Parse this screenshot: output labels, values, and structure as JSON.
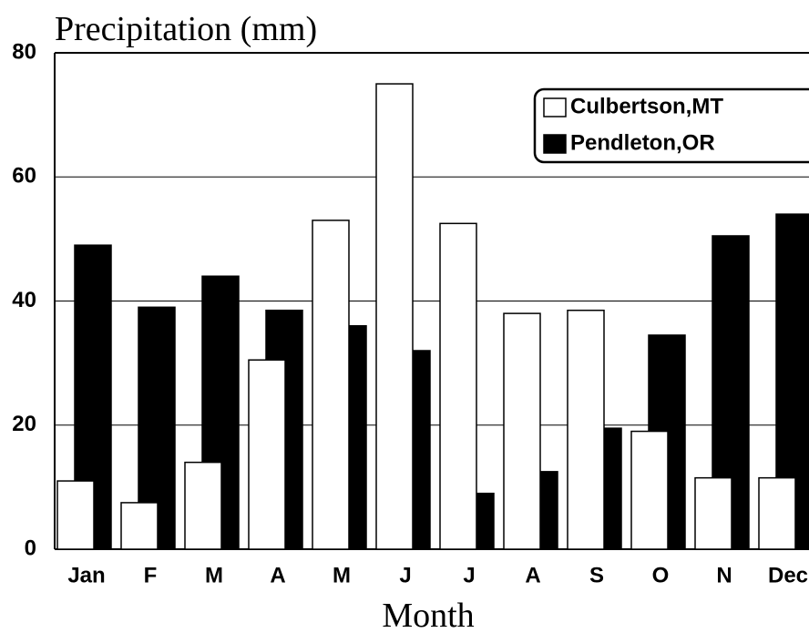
{
  "chart_data": {
    "type": "bar",
    "title": "Precipitation (mm)",
    "x_label": "Month",
    "categories": [
      "Jan",
      "F",
      "M",
      "A",
      "M",
      "J",
      "J",
      "A",
      "S",
      "O",
      "N",
      "Dec"
    ],
    "series": [
      {
        "name": "Culbertson,MT",
        "color": "#ffffff",
        "values": [
          11,
          7.5,
          14,
          30.5,
          53,
          75,
          52.5,
          38,
          38.5,
          19,
          11.5,
          11.5
        ]
      },
      {
        "name": "Pendleton,OR",
        "color": "#000000",
        "values": [
          49,
          39,
          44,
          38.5,
          36,
          32,
          9,
          12.5,
          19.5,
          34.5,
          50.5,
          54
        ]
      }
    ],
    "ylim": [
      0,
      80
    ],
    "yticks": [
      0,
      20,
      40,
      60,
      80
    ],
    "grid": true,
    "legend": "upper right"
  }
}
